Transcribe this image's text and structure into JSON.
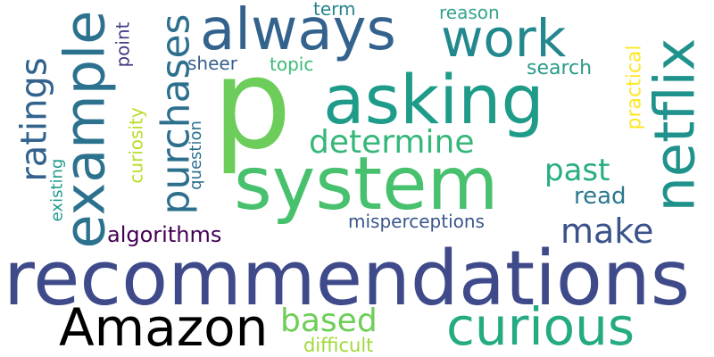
{
  "words": [
    {
      "id": "p",
      "text": "p",
      "color": "#6ccd5a"
    },
    {
      "id": "recommendations",
      "text": "recommendations",
      "color": "#3e4a89"
    },
    {
      "id": "system",
      "text": "system",
      "color": "#48c16e"
    },
    {
      "id": "asking",
      "text": "asking",
      "color": "#1e9c89"
    },
    {
      "id": "always",
      "text": "always",
      "color": "#33638d"
    },
    {
      "id": "work",
      "text": "work",
      "color": "#23888e"
    },
    {
      "id": "example",
      "text": "example",
      "color": "#2c728e"
    },
    {
      "id": "netflix",
      "text": "netflix",
      "color": "#20928c"
    },
    {
      "id": "curious",
      "text": "curious",
      "color": "#25ab82"
    },
    {
      "id": "amazon",
      "text": "Amazon",
      "color": "#1f9e89"
    },
    {
      "id": "purchases",
      "text": "purchases",
      "color": "#2d708e"
    },
    {
      "id": "ratings",
      "text": "ratings",
      "color": "#33638d"
    },
    {
      "id": "determine",
      "text": "determine",
      "color": "#35b779"
    },
    {
      "id": "past",
      "text": "past",
      "color": "#28ae80"
    },
    {
      "id": "make",
      "text": "make",
      "color": "#3b528b"
    },
    {
      "id": "based",
      "text": "based",
      "color": "#6ece58"
    },
    {
      "id": "algorithms",
      "text": "algorithms",
      "color": "#440154"
    },
    {
      "id": "misperceptions",
      "text": "misperceptions",
      "color": "#39568c"
    },
    {
      "id": "read",
      "text": "read",
      "color": "#2a788e"
    },
    {
      "id": "search",
      "text": "search",
      "color": "#2a9a88"
    },
    {
      "id": "practical",
      "text": "practical",
      "color": "#fde725"
    },
    {
      "id": "reason",
      "text": "reason",
      "color": "#33a38a"
    },
    {
      "id": "term",
      "text": "term",
      "color": "#25838e"
    },
    {
      "id": "sheer",
      "text": "sheer",
      "color": "#355f8d"
    },
    {
      "id": "topic",
      "text": "topic",
      "color": "#3bbb75"
    },
    {
      "id": "point",
      "text": "point",
      "color": "#433e85"
    },
    {
      "id": "curiosity",
      "text": "curiosity",
      "color": "#b5de2b"
    },
    {
      "id": "question",
      "text": "question",
      "color": "#2d708e"
    },
    {
      "id": "existing",
      "text": "existing",
      "color": "#1f9a8a"
    },
    {
      "id": "difficult",
      "text": "difficult",
      "color": "#a0da39"
    }
  ]
}
